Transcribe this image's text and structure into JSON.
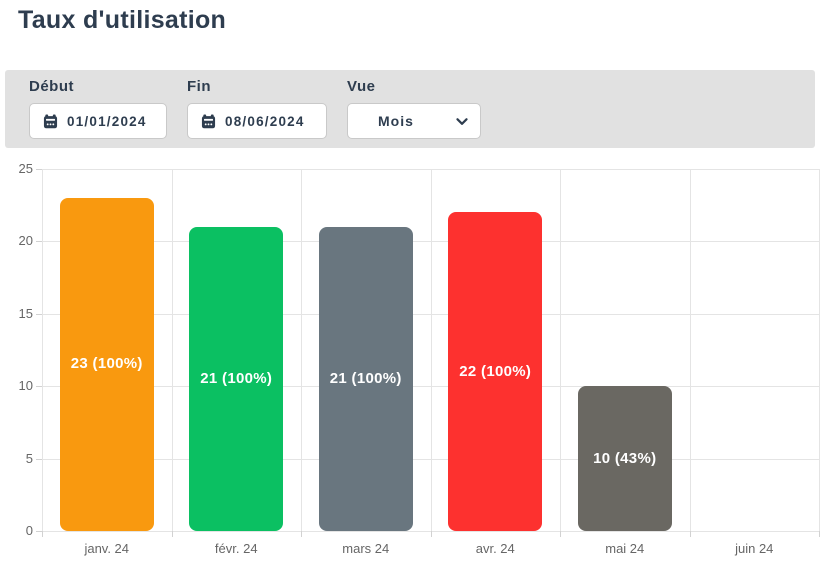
{
  "title": "Taux d'utilisation",
  "filters": {
    "start": {
      "label": "Début",
      "value": "01/01/2024",
      "icon": "calendar-icon"
    },
    "end": {
      "label": "Fin",
      "value": "08/06/2024",
      "icon": "calendar-icon"
    },
    "view": {
      "label": "Vue",
      "value": "Mois",
      "options": [
        "Mois"
      ],
      "icon": "chevron-down-icon"
    }
  },
  "colors": {
    "accent_navy": "#2e3d4f",
    "filterbar_bg": "#e1e1e1",
    "gridline": "#e4e4e4",
    "axis_text": "#666666"
  },
  "chart_data": {
    "type": "bar",
    "title": "Taux d'utilisation",
    "categories": [
      "janv. 24",
      "févr. 24",
      "mars 24",
      "avr. 24",
      "mai 24",
      "juin 24"
    ],
    "values": [
      23,
      21,
      21,
      22,
      10,
      0
    ],
    "bar_labels": [
      "23 (100%)",
      "21 (100%)",
      "21 (100%)",
      "22 (100%)",
      "10 (43%)",
      ""
    ],
    "colors": [
      "#f9990f",
      "#0bc062",
      "#69767f",
      "#fd312f",
      "#6a6862",
      null
    ],
    "xlabel": "",
    "ylabel": "",
    "ylim": [
      0,
      25
    ],
    "yticks": [
      0,
      5,
      10,
      15,
      20,
      25
    ],
    "grid": true,
    "legend": false,
    "bar_label_position": "center",
    "bar_label_color": "#ffffff"
  }
}
